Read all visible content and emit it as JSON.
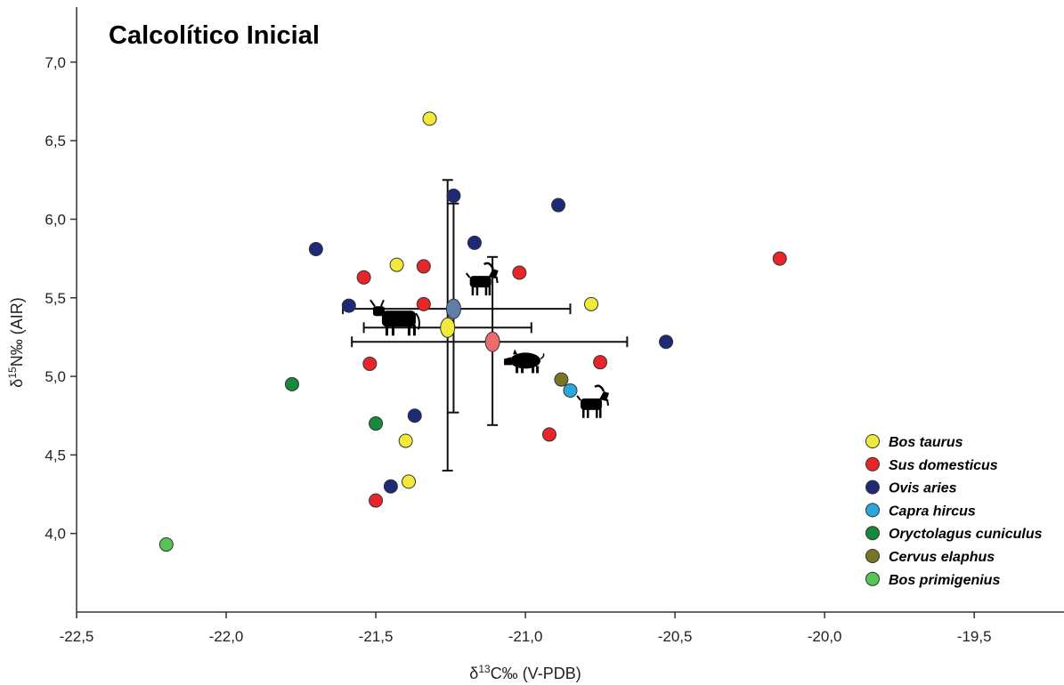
{
  "chart_data": {
    "type": "scatter",
    "title": "Calcolítico Inicial",
    "xlabel": {
      "pre": "δ",
      "sup": "13",
      "post": "C‰ (V-PDB)"
    },
    "ylabel": {
      "pre": "δ",
      "sup": "15",
      "post": "N‰ (AIR)"
    },
    "xlim": [
      -22.5,
      -19.2
    ],
    "ylim": [
      3.5,
      7.35
    ],
    "xticks": [
      -22.5,
      -22.0,
      -21.5,
      -21.0,
      -20.5,
      -20.0,
      -19.5
    ],
    "xtick_labels": [
      "-22,5",
      "-22,0",
      "-21,5",
      "-21,0",
      "-20,5",
      "-20,0",
      "-19,5"
    ],
    "yticks": [
      4.0,
      4.5,
      5.0,
      5.5,
      6.0,
      6.5,
      7.0
    ],
    "ytick_labels": [
      "4,0",
      "4,5",
      "5,0",
      "5,5",
      "6,0",
      "6,5",
      "7,0"
    ],
    "grid": false,
    "legend_position": "bottom-right",
    "series": [
      {
        "name": "Bos taurus",
        "color": "#f2ea3a",
        "points": [
          [
            -21.32,
            6.64
          ],
          [
            -21.43,
            5.71
          ],
          [
            -20.78,
            5.46
          ],
          [
            -21.4,
            4.59
          ],
          [
            -21.39,
            4.33
          ]
        ]
      },
      {
        "name": "Sus domesticus",
        "color": "#e8262a",
        "points": [
          [
            -21.54,
            5.63
          ],
          [
            -21.34,
            5.7
          ],
          [
            -21.34,
            5.46
          ],
          [
            -21.02,
            5.66
          ],
          [
            -21.52,
            5.08
          ],
          [
            -20.75,
            5.09
          ],
          [
            -20.92,
            4.63
          ],
          [
            -21.5,
            4.21
          ],
          [
            -20.15,
            5.75
          ]
        ]
      },
      {
        "name": "Ovis aries",
        "color": "#1e2a78",
        "points": [
          [
            -21.7,
            5.81
          ],
          [
            -21.59,
            5.45
          ],
          [
            -21.24,
            6.15
          ],
          [
            -21.17,
            5.85
          ],
          [
            -20.89,
            6.09
          ],
          [
            -21.37,
            4.75
          ],
          [
            -21.45,
            4.3
          ],
          [
            -20.53,
            5.22
          ]
        ]
      },
      {
        "name": "Capra hircus",
        "color": "#29a8e0",
        "points": [
          [
            -20.85,
            4.91
          ]
        ]
      },
      {
        "name": "Oryctolagus cuniculus",
        "color": "#138a3c",
        "points": [
          [
            -21.78,
            4.95
          ],
          [
            -21.5,
            4.7
          ]
        ]
      },
      {
        "name": "Cervus elaphus",
        "color": "#7a7526",
        "points": [
          [
            -20.88,
            4.98
          ]
        ]
      },
      {
        "name": "Bos primigenius",
        "color": "#55c453",
        "points": [
          [
            -22.2,
            3.93
          ]
        ]
      }
    ],
    "means": [
      {
        "color": "#f2ea3a",
        "x": -21.26,
        "y": 5.31,
        "x_lo": -21.54,
        "x_hi": -20.98,
        "y_lo": 4.4,
        "y_hi": 6.25
      },
      {
        "color": "#5f7ea8",
        "x": -21.24,
        "y": 5.43,
        "x_lo": -21.61,
        "x_hi": -20.85,
        "y_lo": 4.77,
        "y_hi": 6.1
      },
      {
        "color": "#ec6b6d",
        "x": -21.11,
        "y": 5.22,
        "x_lo": -21.58,
        "x_hi": -20.66,
        "y_lo": 4.69,
        "y_hi": 5.76
      }
    ],
    "silhouettes": [
      {
        "icon": "goat-icon",
        "x": -21.15,
        "y": 5.6
      },
      {
        "icon": "cow-icon",
        "x": -21.42,
        "y": 5.35
      },
      {
        "icon": "pig-icon",
        "x": -21.0,
        "y": 5.1
      },
      {
        "icon": "goat-icon",
        "x": -20.78,
        "y": 4.82
      }
    ]
  }
}
